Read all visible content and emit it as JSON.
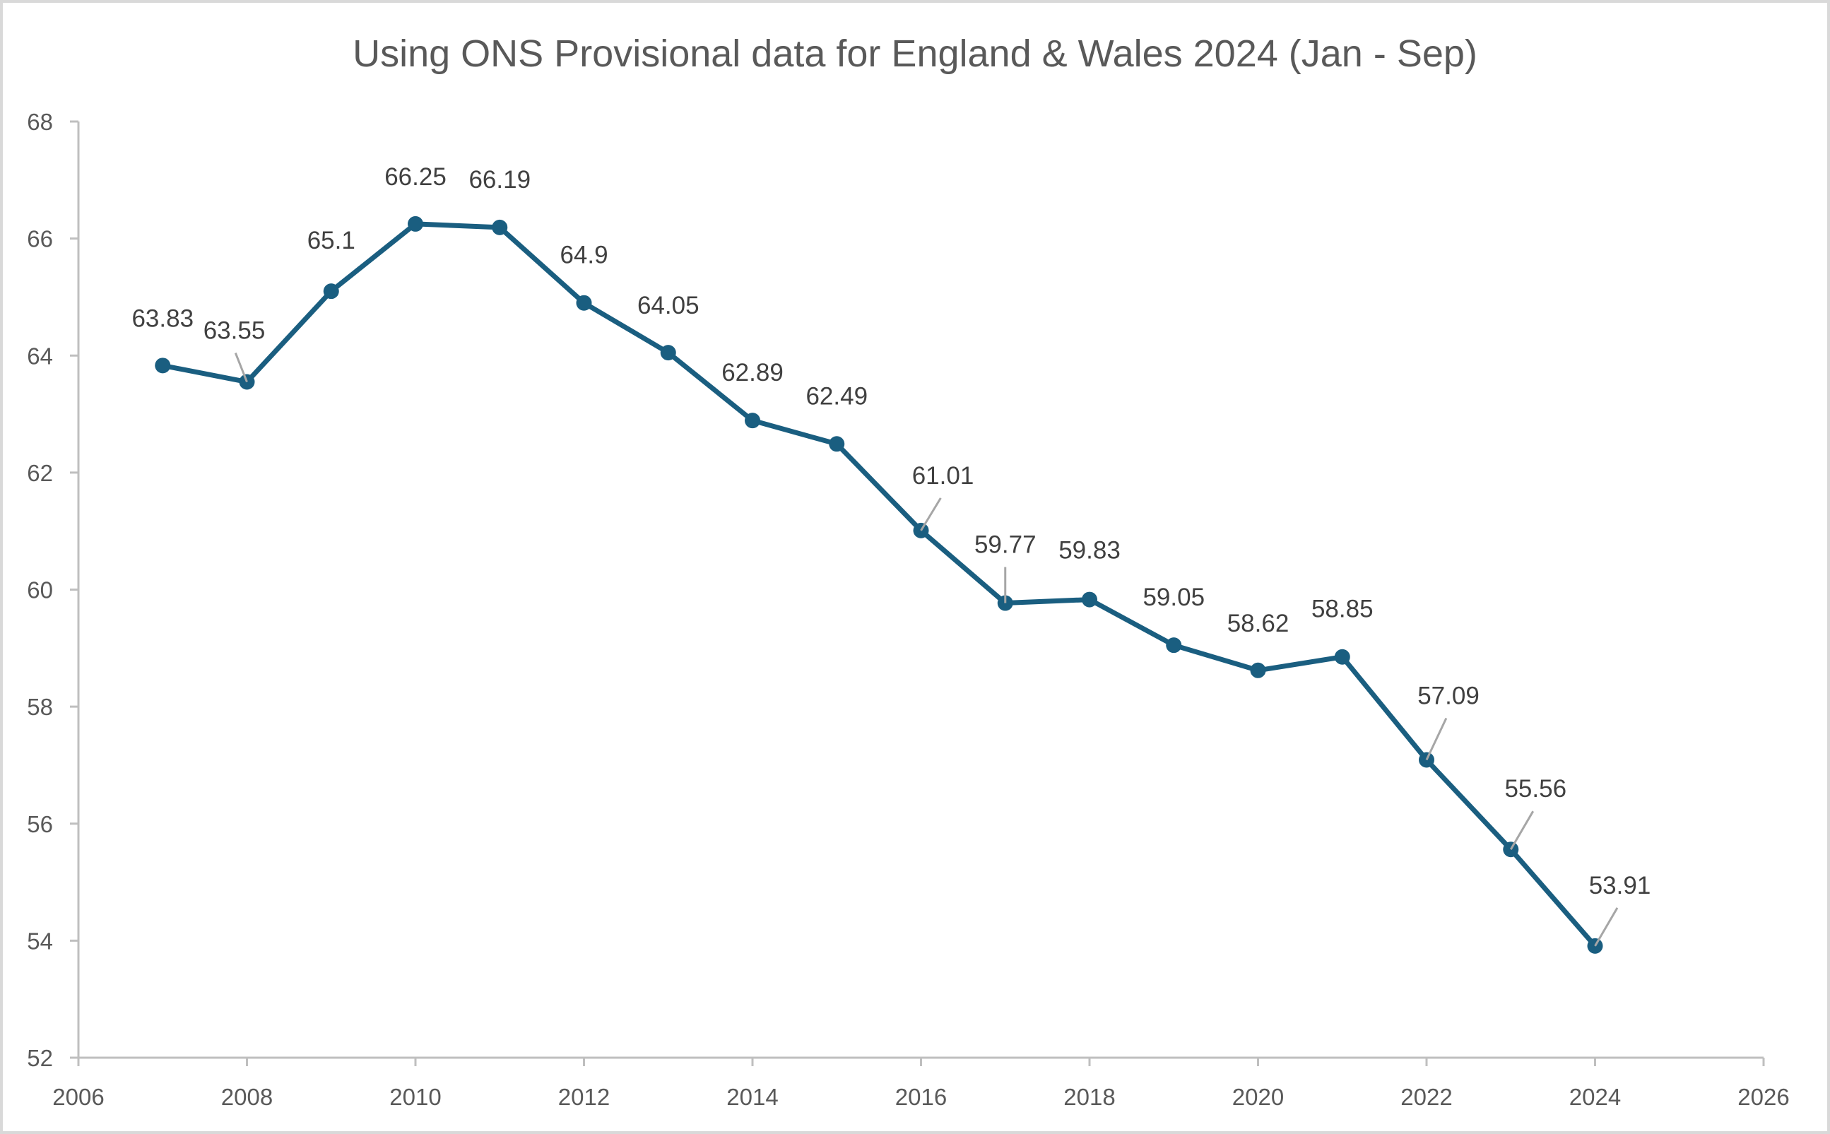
{
  "chart_data": {
    "type": "line",
    "title": "Using ONS Provisional data for England & Wales 2024 (Jan - Sep)",
    "xlabel": "",
    "ylabel": "",
    "xlim": [
      2006,
      2026
    ],
    "ylim": [
      52,
      68
    ],
    "x_ticks": [
      2006,
      2008,
      2010,
      2012,
      2014,
      2016,
      2018,
      2020,
      2022,
      2024,
      2026
    ],
    "y_ticks": [
      52,
      54,
      56,
      58,
      60,
      62,
      64,
      66,
      68
    ],
    "grid": false,
    "legend": "none",
    "series": [
      {
        "name": "Series1",
        "color": "#1a5e80",
        "x": [
          2007,
          2008,
          2009,
          2010,
          2011,
          2012,
          2013,
          2014,
          2015,
          2016,
          2017,
          2018,
          2019,
          2020,
          2021,
          2022,
          2023,
          2024
        ],
        "y": [
          63.83,
          63.55,
          65.1,
          66.25,
          66.19,
          64.9,
          64.05,
          62.89,
          62.49,
          61.01,
          59.77,
          59.83,
          59.05,
          58.62,
          58.85,
          57.09,
          55.56,
          53.91
        ],
        "labels": [
          "63.83",
          "63.55",
          "65.1",
          "66.25",
          "66.19",
          "64.9",
          "64.05",
          "62.89",
          "62.49",
          "61.01",
          "59.77",
          "59.83",
          "59.05",
          "58.62",
          "58.85",
          "57.09",
          "55.56",
          "53.91"
        ]
      }
    ]
  }
}
